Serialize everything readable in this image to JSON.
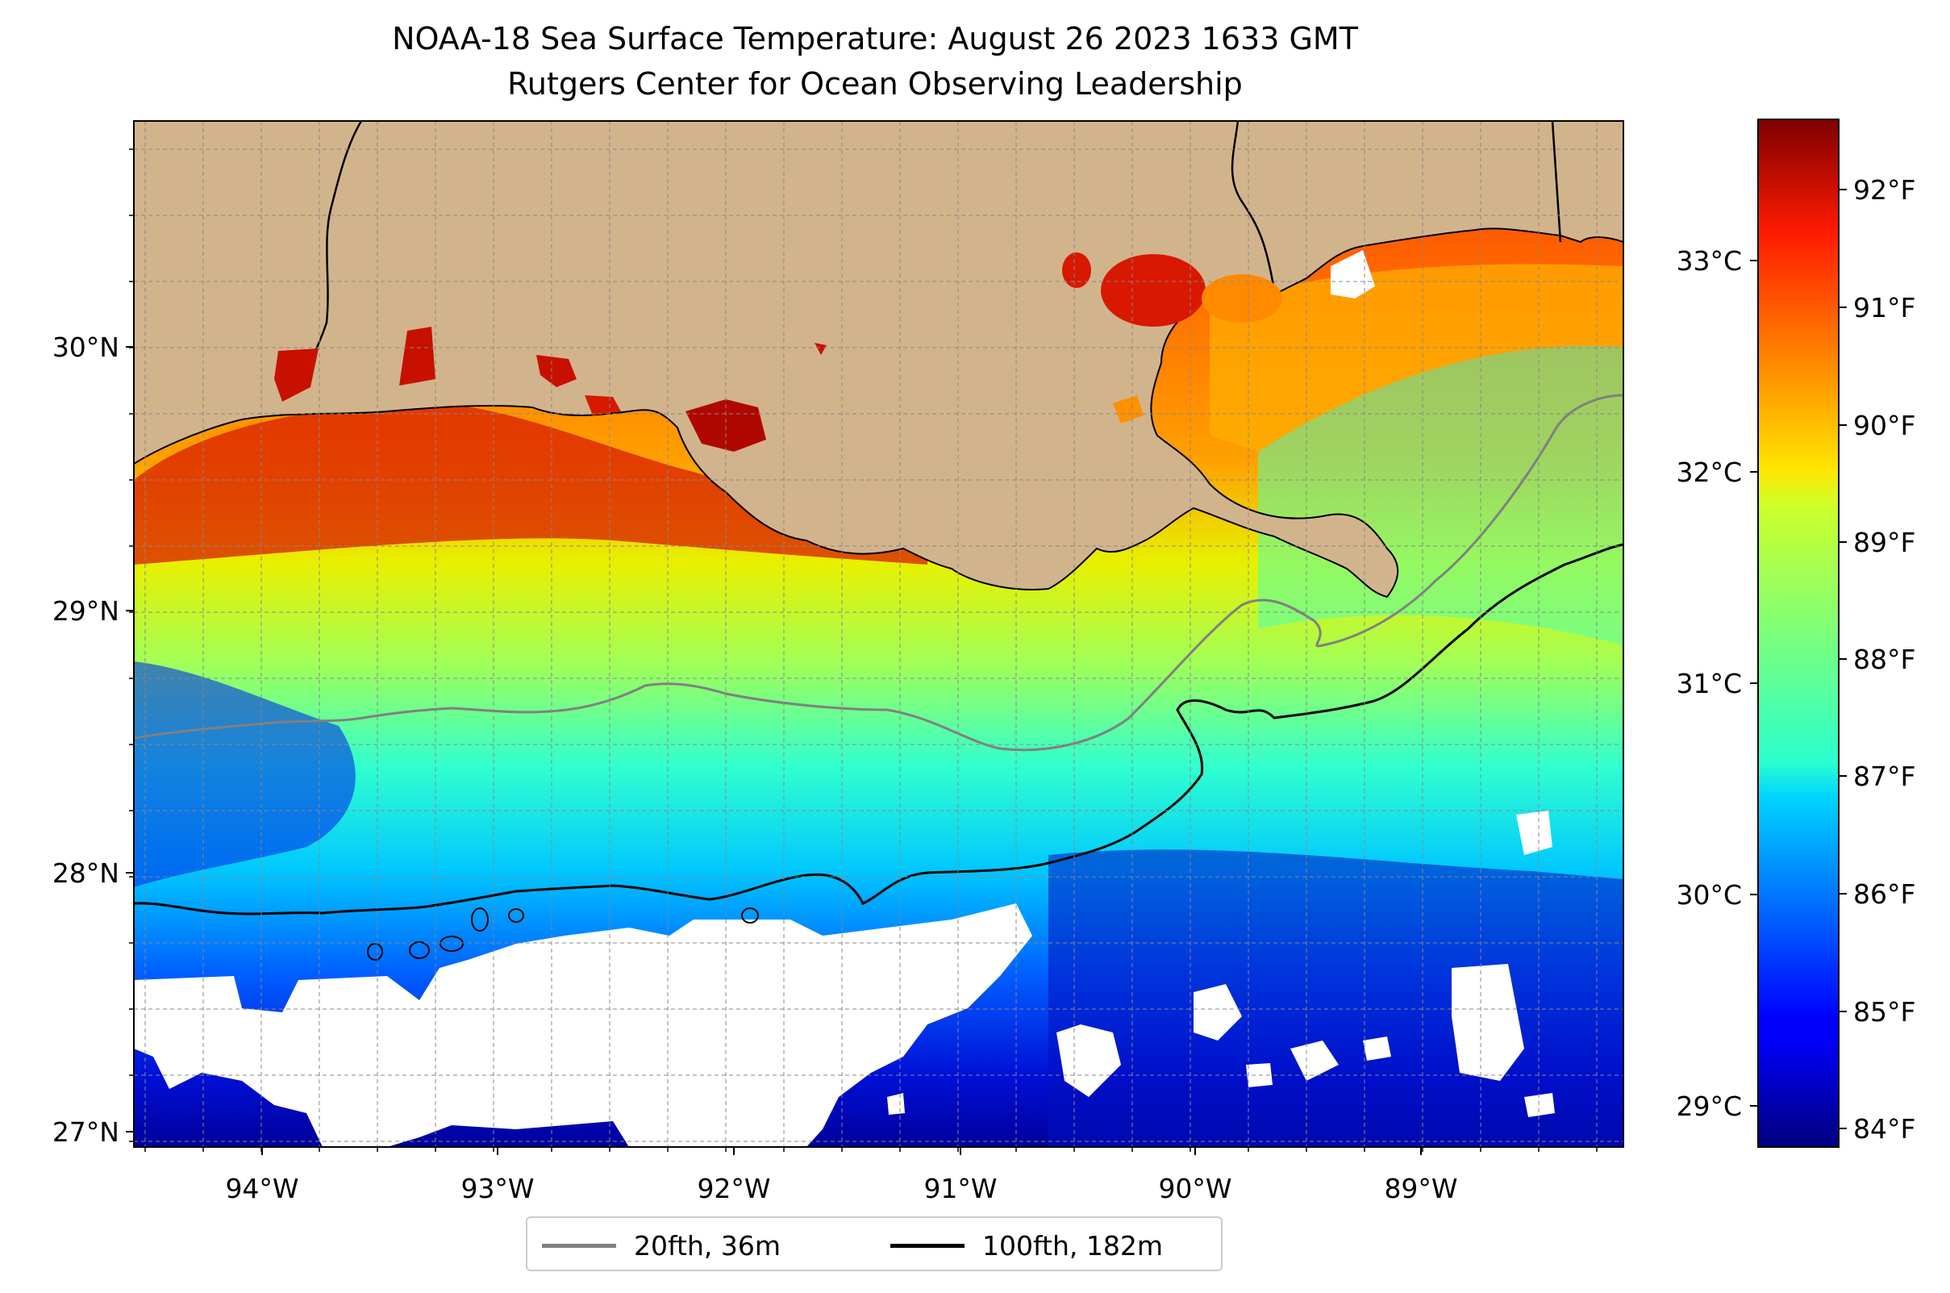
{
  "title": {
    "line1": "NOAA-18 Sea Surface Temperature: August 26 2023 1633 GMT",
    "line2": "Rutgers Center for Ocean Observing Leadership"
  },
  "map": {
    "lon_range": [
      -94.55,
      -88.2
    ],
    "lat_range": [
      26.93,
      30.85
    ],
    "lon_ticks": [
      "94°W",
      "93°W",
      "92°W",
      "91°W",
      "90°W",
      "89°W"
    ],
    "lat_ticks": [
      "30°N",
      "29°N",
      "28°N",
      "27°N"
    ],
    "grid": "dashed",
    "colors": {
      "land": "#d2b48c",
      "no_data": "#ffffff",
      "isobath_20fth": "#808080",
      "isobath_100fth": "#000000"
    }
  },
  "colorbar": {
    "colormap": "jet",
    "fahrenheit_ticks": [
      "92°F",
      "91°F",
      "90°F",
      "89°F",
      "88°F",
      "87°F",
      "86°F",
      "85°F",
      "84°F"
    ],
    "celsius_ticks": [
      "33°C",
      "32°C",
      "31°C",
      "30°C",
      "29°C"
    ]
  },
  "legend": {
    "items": [
      {
        "label": "20fth, 36m",
        "color": "#808080"
      },
      {
        "label": "100fth, 182m",
        "color": "#000000"
      }
    ]
  }
}
